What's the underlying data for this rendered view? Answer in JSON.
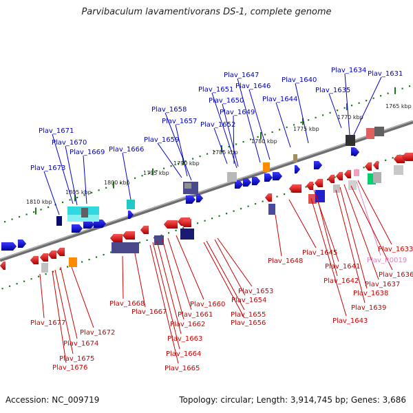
{
  "title": "Parvibaculum lavamentivorans DS-1, complete genome",
  "footer": {
    "accession": "Accession: NC_009719",
    "summary": "Topology: circular; Length: 3,914,745 bp; Genes: 3,686"
  },
  "colors": {
    "plus_label": "#0000cc",
    "minus_label": "#cc0000",
    "rna_label": "#e080c0",
    "backbone": "#777777",
    "tick": "#1a7a1a"
  },
  "kbp_ticks": [
    {
      "text": "1765 kbp"
    },
    {
      "text": "1770 kbp"
    },
    {
      "text": "1775 kbp"
    },
    {
      "text": "1780 kbp"
    },
    {
      "text": "1785 kbp"
    },
    {
      "text": "1790 kbp"
    },
    {
      "text": "1795 kbp"
    },
    {
      "text": "1800 kbp"
    },
    {
      "text": "1805 kbp"
    },
    {
      "text": "1810 kbp"
    }
  ],
  "top_genes": [
    {
      "name": "Plav_1631"
    },
    {
      "name": "Plav_1634"
    },
    {
      "name": "Plav_1635"
    },
    {
      "name": "Plav_1640"
    },
    {
      "name": "Plav_1644"
    },
    {
      "name": "Plav_1647"
    },
    {
      "name": "Plav_1646"
    },
    {
      "name": "Plav_1651"
    },
    {
      "name": "Plav_1650"
    },
    {
      "name": "Plav_1649"
    },
    {
      "name": "Plav_1652"
    },
    {
      "name": "Plav_1658"
    },
    {
      "name": "Plav_1657"
    },
    {
      "name": "Plav_1659"
    },
    {
      "name": "Plav_1666"
    },
    {
      "name": "Plav_1671"
    },
    {
      "name": "Plav_1670"
    },
    {
      "name": "Plav_1669"
    },
    {
      "name": "Plav_1673"
    }
  ],
  "bottom_genes": [
    {
      "name": "Plav_1633",
      "kind": "gene"
    },
    {
      "name": "Plav_R0019",
      "kind": "rna"
    },
    {
      "name": "Plav_1636",
      "kind": "gene"
    },
    {
      "name": "Plav_1637",
      "kind": "gene"
    },
    {
      "name": "Plav_1638",
      "kind": "gene"
    },
    {
      "name": "Plav_1639",
      "kind": "gene"
    },
    {
      "name": "Plav_1641",
      "kind": "gene"
    },
    {
      "name": "Plav_1642",
      "kind": "gene"
    },
    {
      "name": "Plav_1643",
      "kind": "gene"
    },
    {
      "name": "Plav_1645",
      "kind": "gene"
    },
    {
      "name": "Plav_1648",
      "kind": "gene"
    },
    {
      "name": "Plav_1653",
      "kind": "gene"
    },
    {
      "name": "Plav_1654",
      "kind": "gene"
    },
    {
      "name": "Plav_1655",
      "kind": "gene"
    },
    {
      "name": "Plav_1656",
      "kind": "gene"
    },
    {
      "name": "Plav_1660",
      "kind": "gene"
    },
    {
      "name": "Plav_1661",
      "kind": "gene"
    },
    {
      "name": "Plav_1662",
      "kind": "gene"
    },
    {
      "name": "Plav_1663",
      "kind": "gene"
    },
    {
      "name": "Plav_1664",
      "kind": "gene"
    },
    {
      "name": "Plav_1665",
      "kind": "gene"
    },
    {
      "name": "Plav_1667",
      "kind": "gene"
    },
    {
      "name": "Plav_1668",
      "kind": "gene"
    },
    {
      "name": "Plav_1672",
      "kind": "gene"
    },
    {
      "name": "Plav_1674",
      "kind": "gene"
    },
    {
      "name": "Plav_1675",
      "kind": "gene"
    },
    {
      "name": "Plav_1676",
      "kind": "gene"
    },
    {
      "name": "Plav_1677",
      "kind": "gene"
    }
  ]
}
